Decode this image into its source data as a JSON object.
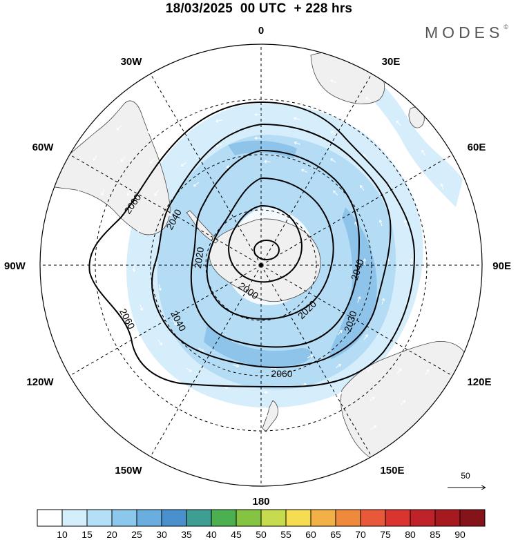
{
  "title": "18/03/2025  00 UTC  + 228 hrs",
  "brand": "MODES",
  "brand_mark": "©",
  "longitude_labels": {
    "n0": "0",
    "n30e": "30E",
    "n60e": "60E",
    "n90e": "90E",
    "n120e": "120E",
    "n150e": "150E",
    "n180": "180",
    "n150w": "150W",
    "n120w": "120W",
    "n90w": "90W",
    "n60w": "60W",
    "n30w": "30W"
  },
  "contours": {
    "c2060a": "2060",
    "c2060b": "2060",
    "c2060c": "2060",
    "c2040a": "2040",
    "c2040b": "2040",
    "c2040c": "2040",
    "c2020a": "2020",
    "c2020b": "2020",
    "c2000": "2000",
    "c2030": "2030"
  },
  "reference_vector": "50",
  "colorbar": {
    "ticks": [
      "10",
      "15",
      "20",
      "25",
      "30",
      "35",
      "40",
      "45",
      "50",
      "55",
      "60",
      "65",
      "70",
      "75",
      "80",
      "85",
      "90"
    ],
    "colors": [
      "#ffffff",
      "#d4eefb",
      "#b3e0f7",
      "#8cc8ec",
      "#6aaedf",
      "#4a90cc",
      "#3f9e93",
      "#4cb050",
      "#84c442",
      "#c6dc4e",
      "#f6dc52",
      "#f2b146",
      "#ef8a3c",
      "#e8593a",
      "#d93430",
      "#bf2228",
      "#a6191f",
      "#84141a"
    ]
  },
  "colors": {
    "land": "#f0f0f0",
    "coast": "#444444",
    "wind_light": "#d6edfb",
    "wind_mid": "#b5dcf5",
    "wind_strong": "#8ec4ea"
  }
}
